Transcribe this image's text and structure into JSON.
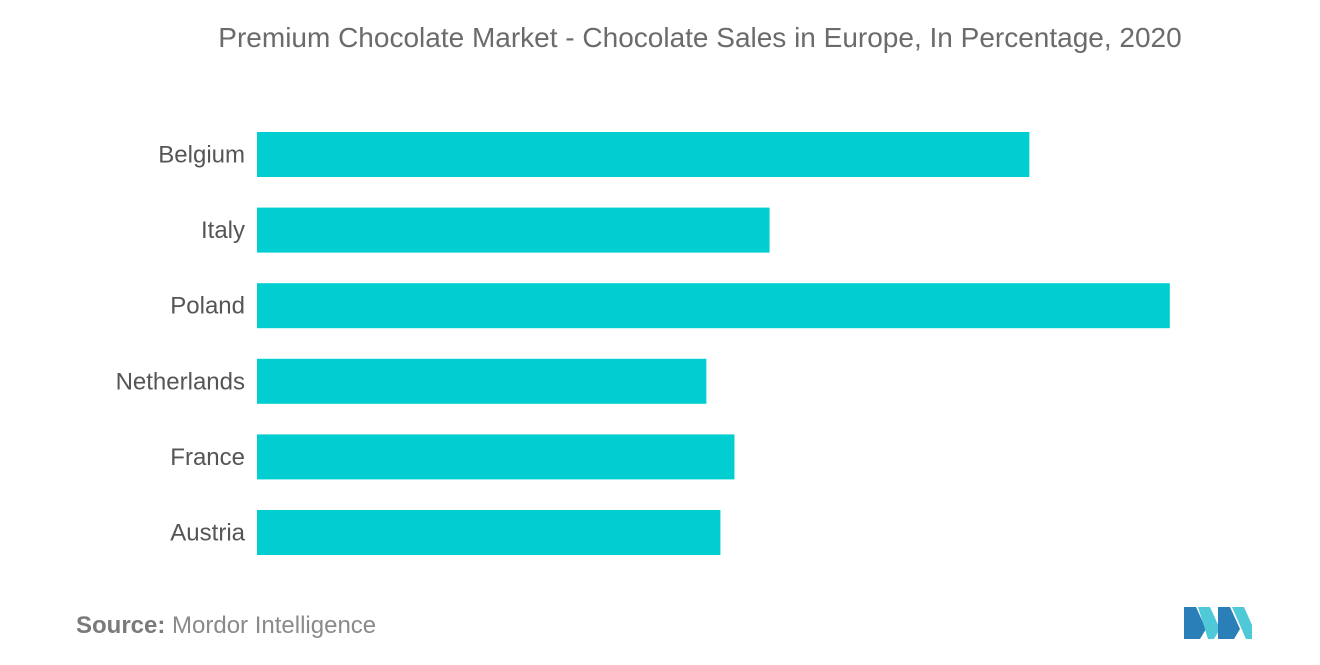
{
  "chart_data": {
    "type": "bar",
    "orientation": "horizontal",
    "title": "Premium Chocolate Market - Chocolate Sales in Europe, In Percentage, 2020",
    "categories": [
      "Belgium",
      "Italy",
      "Poland",
      "Netherlands",
      "France",
      "Austria"
    ],
    "values": [
      55,
      36.5,
      65,
      32,
      34,
      33
    ],
    "xlim": [
      0,
      70
    ],
    "xlabel": "",
    "ylabel": "",
    "grid": false,
    "legend": "none",
    "bar_color": "#00ced1"
  },
  "source": {
    "label": "Source:",
    "text": "Mordor Intelligence"
  },
  "logo": {
    "icon": "mordor-intelligence-logo-icon",
    "colors": [
      "#2b7fb8",
      "#4fc8d8"
    ]
  }
}
